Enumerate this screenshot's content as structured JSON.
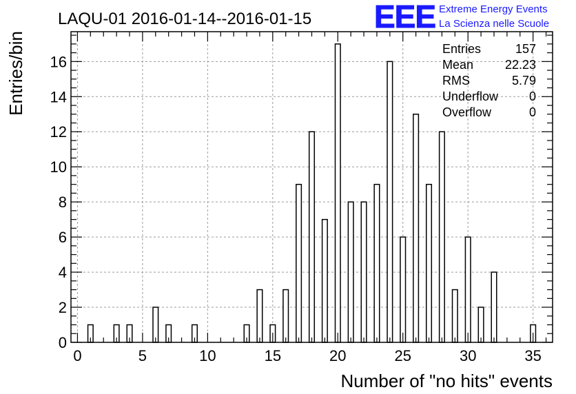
{
  "header": {
    "title": "LAQU-01 2016-01-14--2016-01-15",
    "logo_text": "EEE",
    "logo_line1": "Extreme Energy Events",
    "logo_line2": "La Scienza nelle Scuole",
    "brand_color": "#1a1aff"
  },
  "stats": {
    "rows": [
      {
        "label": "Entries",
        "value": "157"
      },
      {
        "label": "Mean",
        "value": "22.23"
      },
      {
        "label": "RMS",
        "value": "5.79"
      },
      {
        "label": "Underflow",
        "value": "0"
      },
      {
        "label": "Overflow",
        "value": "0"
      }
    ]
  },
  "chart_data": {
    "type": "bar",
    "title": "LAQU-01 2016-01-14--2016-01-15",
    "xlabel": "Number of \"no hits\" events",
    "ylabel": "Entries/bin",
    "xlim": [
      -0.5,
      36.5
    ],
    "ylim": [
      0,
      17.7
    ],
    "xticks": [
      0,
      5,
      10,
      15,
      20,
      25,
      30,
      35
    ],
    "yticks": [
      0,
      2,
      4,
      6,
      8,
      10,
      12,
      14,
      16
    ],
    "grid": true,
    "bar_width": 0.4,
    "bins": [
      {
        "x": 1,
        "count": 1
      },
      {
        "x": 3,
        "count": 1
      },
      {
        "x": 4,
        "count": 1
      },
      {
        "x": 6,
        "count": 2
      },
      {
        "x": 7,
        "count": 1
      },
      {
        "x": 9,
        "count": 1
      },
      {
        "x": 13,
        "count": 1
      },
      {
        "x": 14,
        "count": 3
      },
      {
        "x": 15,
        "count": 1
      },
      {
        "x": 16,
        "count": 3
      },
      {
        "x": 17,
        "count": 9
      },
      {
        "x": 18,
        "count": 12
      },
      {
        "x": 19,
        "count": 7
      },
      {
        "x": 20,
        "count": 17
      },
      {
        "x": 21,
        "count": 8
      },
      {
        "x": 22,
        "count": 8
      },
      {
        "x": 23,
        "count": 9
      },
      {
        "x": 24,
        "count": 16
      },
      {
        "x": 25,
        "count": 6
      },
      {
        "x": 26,
        "count": 13
      },
      {
        "x": 27,
        "count": 9
      },
      {
        "x": 28,
        "count": 12
      },
      {
        "x": 29,
        "count": 3
      },
      {
        "x": 30,
        "count": 6
      },
      {
        "x": 31,
        "count": 2
      },
      {
        "x": 32,
        "count": 4
      },
      {
        "x": 35,
        "count": 1
      }
    ]
  }
}
